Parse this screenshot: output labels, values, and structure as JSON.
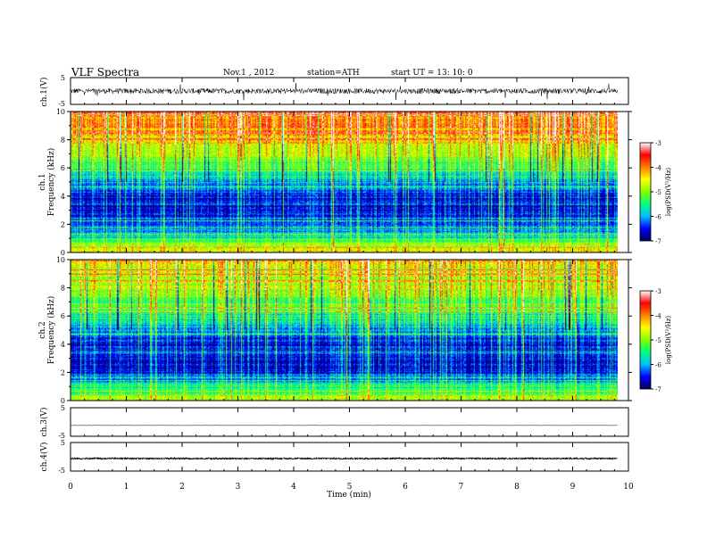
{
  "header": {
    "title": "VLF  Spectra",
    "date": "Nov.1  , 2012",
    "station": "station=ATH",
    "start": "start  UT  =    13: 10: 0"
  },
  "chart_data": [
    {
      "type": "line",
      "panel": "ch1-waveform",
      "ylabel": "ch.1(V)",
      "ylim": [
        -5,
        5
      ],
      "ytick_labels": [
        "5",
        "-5"
      ],
      "xlim": [
        0,
        10
      ],
      "x_end": 9.8,
      "baseline": 0,
      "typical_amplitude": 1.0,
      "spike_amplitude": 3.5,
      "color": "#000000"
    },
    {
      "type": "heatmap",
      "panel": "ch1-spectrogram",
      "ylabel": "ch.1\nFrequency  (kHz)",
      "ylabel_line1": "ch.1",
      "ylabel_line2": "Frequency  (kHz)",
      "ylim": [
        0,
        10
      ],
      "ytick_labels": [
        "0",
        "2",
        "4",
        "6",
        "8",
        "10"
      ],
      "xlim": [
        0,
        10
      ],
      "x_end": 9.8,
      "z_label": "log(PSD(V²/Hz)",
      "z_range": [
        -7,
        -3
      ],
      "z_tick_labels": [
        "-3",
        "-4",
        "-5",
        "-6",
        "-7"
      ],
      "colormap": [
        "#00005a",
        "#0000ff",
        "#00bfff",
        "#00ff80",
        "#80ff00",
        "#ffff00",
        "#ff8000",
        "#ff0000",
        "#ffffff"
      ],
      "profile": {
        "freq_kHz": [
          0,
          0.5,
          1,
          2,
          3,
          4,
          5,
          6,
          7,
          8,
          9,
          10
        ],
        "log_psd": [
          -4.6,
          -4.9,
          -5.6,
          -6.4,
          -6.6,
          -6.6,
          -6.0,
          -5.4,
          -4.8,
          -4.4,
          -4.1,
          -3.9
        ]
      }
    },
    {
      "type": "heatmap",
      "panel": "ch2-spectrogram",
      "ylabel": "ch.2\nFrequency  (kHz)",
      "ylabel_line1": "ch.2",
      "ylabel_line2": "Frequency  (kHz)",
      "ylim": [
        0,
        10
      ],
      "ytick_labels": [
        "0",
        "2",
        "4",
        "6",
        "8",
        "10"
      ],
      "xlim": [
        0,
        10
      ],
      "x_end": 9.8,
      "z_label": "log(PSD(V²/Hz)",
      "z_range": [
        -7,
        -3
      ],
      "z_tick_labels": [
        "-3",
        "-4",
        "-5",
        "-6",
        "-7"
      ],
      "colormap": [
        "#00005a",
        "#0000ff",
        "#00bfff",
        "#00ff80",
        "#80ff00",
        "#ffff00",
        "#ff8000",
        "#ff0000",
        "#ffffff"
      ],
      "profile": {
        "freq_kHz": [
          0,
          0.5,
          1,
          2,
          3,
          4,
          5,
          6,
          7,
          8,
          9,
          10
        ],
        "log_psd": [
          -4.9,
          -5.2,
          -5.8,
          -6.5,
          -6.7,
          -6.6,
          -6.1,
          -5.6,
          -5.2,
          -4.9,
          -4.7,
          -4.6
        ]
      }
    },
    {
      "type": "line",
      "panel": "ch3-waveform",
      "ylabel": "ch.3(V)",
      "ylim": [
        -5,
        5
      ],
      "ytick_labels": [
        "5",
        "-5"
      ],
      "xlim": [
        0,
        10
      ],
      "x_end": 9.8,
      "baseline": -1.2,
      "typical_amplitude": 0.05,
      "spike_amplitude": 0.1,
      "color": "#000000"
    },
    {
      "type": "line",
      "panel": "ch4-waveform",
      "ylabel": "ch.4(V)",
      "ylim": [
        -5,
        5
      ],
      "ytick_labels": [
        "5",
        "-5"
      ],
      "xlim": [
        0,
        10
      ],
      "x_end": 9.8,
      "baseline": -0.6,
      "typical_amplitude": 0.3,
      "spike_amplitude": 0.3,
      "color": "#000000"
    }
  ],
  "x_axis": {
    "label": "Time  (min)",
    "ticks": [
      "0",
      "1",
      "2",
      "3",
      "4",
      "5",
      "6",
      "7",
      "8",
      "9",
      "10"
    ]
  }
}
